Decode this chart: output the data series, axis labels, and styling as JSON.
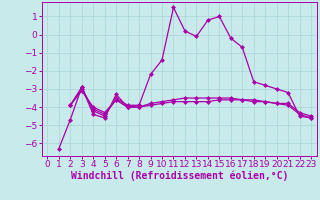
{
  "xlabel": "Windchill (Refroidissement éolien,°C)",
  "bg_color": "#c8eaea",
  "grid_color": "#a8d4d4",
  "line_color": "#aa00aa",
  "spine_color": "#aa00aa",
  "xlim": [
    -0.5,
    23.5
  ],
  "ylim": [
    -6.7,
    1.8
  ],
  "yticks": [
    1,
    0,
    -1,
    -2,
    -3,
    -4,
    -5,
    -6
  ],
  "xticks": [
    0,
    1,
    2,
    3,
    4,
    5,
    6,
    7,
    8,
    9,
    10,
    11,
    12,
    13,
    14,
    15,
    16,
    17,
    18,
    19,
    20,
    21,
    22,
    23
  ],
  "series": [
    [
      null,
      -6.3,
      -4.7,
      -2.9,
      -4.4,
      -4.6,
      -3.3,
      -4.0,
      -3.9,
      -2.2,
      -1.4,
      1.5,
      0.2,
      -0.1,
      0.8,
      1.0,
      -0.2,
      -0.7,
      -2.6,
      -2.8,
      -3.0,
      -3.2,
      -4.5,
      -4.6
    ],
    [
      null,
      null,
      -3.9,
      -2.9,
      -4.2,
      -4.5,
      -3.5,
      -3.9,
      -3.9,
      null,
      null,
      null,
      null,
      null,
      null,
      null,
      null,
      null,
      null,
      null,
      null,
      null,
      null,
      null
    ],
    [
      null,
      null,
      -3.9,
      -3.1,
      -4.0,
      -4.3,
      -3.6,
      -4.0,
      -4.0,
      -3.8,
      -3.7,
      -3.6,
      -3.5,
      -3.5,
      -3.5,
      -3.5,
      -3.5,
      -3.6,
      -3.6,
      -3.7,
      -3.8,
      -3.8,
      -4.3,
      -4.5
    ],
    [
      null,
      null,
      -3.9,
      -3.0,
      -4.1,
      -4.4,
      -3.6,
      -4.0,
      -4.0,
      -3.9,
      -3.8,
      -3.7,
      -3.7,
      -3.7,
      -3.7,
      -3.6,
      -3.6,
      -3.6,
      -3.7,
      -3.7,
      -3.8,
      -3.9,
      -4.4,
      -4.6
    ]
  ],
  "tick_fontsize": 6.5,
  "xlabel_fontsize": 7,
  "marker_size": 2.5,
  "linewidth": 0.9
}
